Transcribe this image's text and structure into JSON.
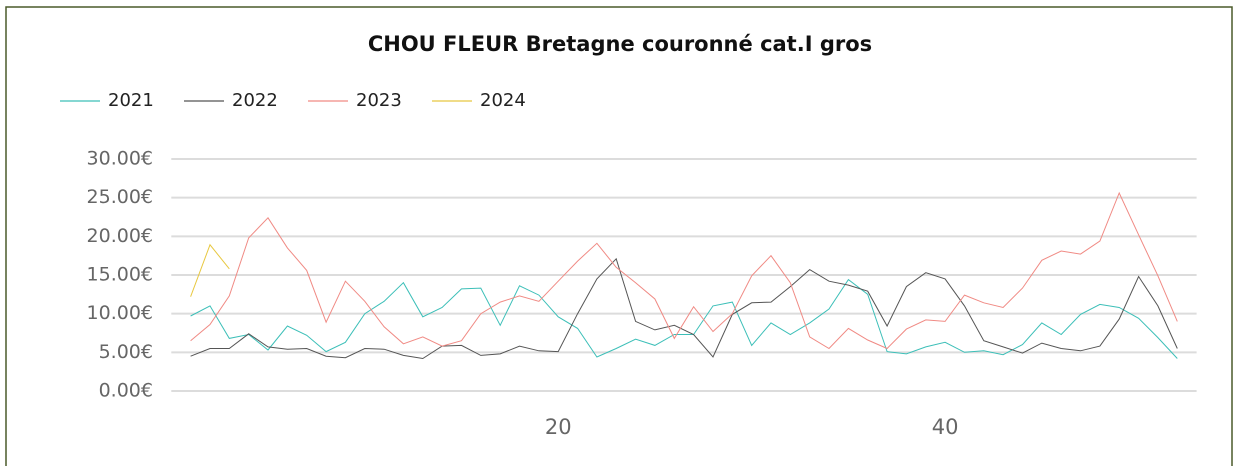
{
  "chart_data": {
    "type": "line",
    "title": "CHOU FLEUR Bretagne couronné cat.I gros",
    "x": [
      1,
      2,
      3,
      4,
      5,
      6,
      7,
      8,
      9,
      10,
      11,
      12,
      13,
      14,
      15,
      16,
      17,
      18,
      19,
      20,
      21,
      22,
      23,
      24,
      25,
      26,
      27,
      28,
      29,
      30,
      31,
      32,
      33,
      34,
      35,
      36,
      37,
      38,
      39,
      40,
      41,
      42,
      43,
      44,
      45,
      46,
      47,
      48,
      49,
      50,
      51,
      52
    ],
    "series": [
      {
        "name": "2021",
        "color": "#3cbfb8",
        "values": [
          9.7,
          11,
          6.8,
          7.3,
          5.3,
          8.4,
          7.2,
          5.1,
          6.3,
          10,
          11.6,
          14,
          9.6,
          10.8,
          13.2,
          13.3,
          8.5,
          13.6,
          12.4,
          9.6,
          8.1,
          4.4,
          5.5,
          6.7,
          5.9,
          7.3,
          7.3,
          11,
          11.5,
          5.9,
          8.8,
          7.3,
          8.8,
          10.6,
          14.4,
          12.5,
          5.1,
          4.8,
          5.7,
          6.3,
          5.0,
          5.2,
          4.7,
          6.0,
          8.8,
          7.3,
          9.9,
          11.2,
          10.8,
          9.4,
          6.9,
          4.2
        ]
      },
      {
        "name": "2022",
        "color": "#555555",
        "values": [
          4.5,
          5.5,
          5.5,
          7.4,
          5.7,
          5.4,
          5.5,
          4.5,
          4.3,
          5.5,
          5.4,
          4.6,
          4.2,
          5.8,
          5.9,
          4.6,
          4.8,
          5.8,
          5.2,
          5.1,
          10,
          14.5,
          17.1,
          9.0,
          7.9,
          8.5,
          7.3,
          4.4,
          9.9,
          11.4,
          11.5,
          13.5,
          15.7,
          14.2,
          13.7,
          12.9,
          8.4,
          13.5,
          15.3,
          14.5,
          11.0,
          6.5,
          5.7,
          4.9,
          6.2,
          5.5,
          5.2,
          5.8,
          9.3,
          14.8,
          11.0,
          5.5
        ]
      },
      {
        "name": "2023",
        "color": "#f08a84",
        "values": [
          6.5,
          8.6,
          12.3,
          19.8,
          22.4,
          18.5,
          15.6,
          8.9,
          14.2,
          11.6,
          8.3,
          6.1,
          7.0,
          5.8,
          6.5,
          10.0,
          11.5,
          12.3,
          11.6,
          14.2,
          16.8,
          19.1,
          16.0,
          14.0,
          11.9,
          6.8,
          10.9,
          7.7,
          10.0,
          14.9,
          17.5,
          14.0,
          7.0,
          5.5,
          8.1,
          6.6,
          5.5,
          8.0,
          9.2,
          9.0,
          12.4,
          11.4,
          10.8,
          13.3,
          16.9,
          18.1,
          17.7,
          19.4,
          25.6,
          20.2,
          14.9,
          9.0
        ]
      },
      {
        "name": "2024",
        "color": "#e8c840",
        "values": [
          12.2,
          18.9,
          15.8,
          null,
          null,
          null,
          null,
          null,
          null,
          null,
          null,
          null,
          null,
          null,
          null,
          null,
          null,
          null,
          null,
          null,
          null,
          null,
          null,
          null,
          null,
          null,
          null,
          null,
          null,
          null,
          null,
          null,
          null,
          null,
          null,
          null,
          null,
          null,
          null,
          null,
          null,
          null,
          null,
          null,
          null,
          null,
          null,
          null,
          null,
          null,
          null,
          null
        ]
      }
    ],
    "xlim": [
      0,
      53
    ],
    "xticks": [
      20,
      40
    ],
    "ylim": [
      0,
      30
    ],
    "yticks": [
      {
        "value": 0,
        "label": "0.00€"
      },
      {
        "value": 5,
        "label": "5.00€"
      },
      {
        "value": 10,
        "label": "10.00€"
      },
      {
        "value": 15,
        "label": "15.00€"
      },
      {
        "value": 20,
        "label": "20.00€"
      },
      {
        "value": 25,
        "label": "25.00€"
      },
      {
        "value": 30,
        "label": "30.00€"
      }
    ],
    "grid": true,
    "legend": "top-left"
  }
}
